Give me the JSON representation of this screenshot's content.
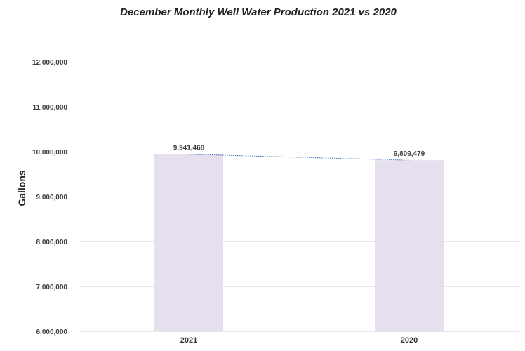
{
  "chart_data": {
    "type": "bar",
    "title": "December Monthly Well Water Production 2021 vs 2020",
    "xlabel": "",
    "ylabel": "Gallons",
    "categories": [
      "2021",
      "2020"
    ],
    "values": [
      9941468,
      9809479
    ],
    "data_labels": [
      "9,941,468",
      "9,809,479"
    ],
    "ylim": [
      6000000,
      12000000
    ],
    "yticks": [
      6000000,
      7000000,
      8000000,
      9000000,
      10000000,
      11000000,
      12000000
    ],
    "ytick_labels": [
      "6,000,000",
      "7,000,000",
      "8,000,000",
      "9,000,000",
      "10,000,000",
      "11,000,000",
      "12,000,000"
    ],
    "grid": true,
    "trendline": true,
    "legend": "none",
    "bar_color": "#e6e0ee",
    "trendline_color": "#4472c4",
    "grid_color": "#e6e6e6"
  }
}
